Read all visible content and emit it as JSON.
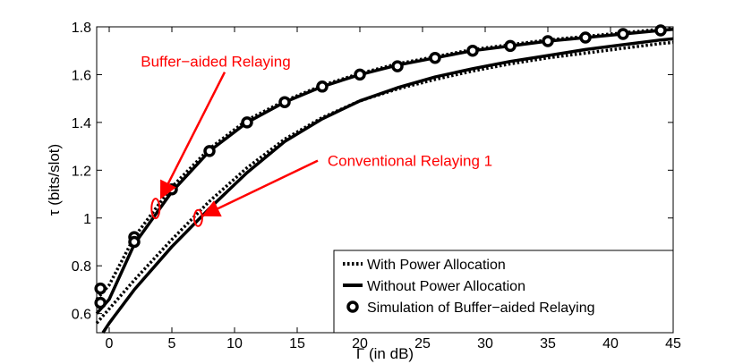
{
  "chart_data": {
    "type": "line",
    "title": "",
    "xlabel": "Γ (in dB)",
    "ylabel": "τ (bits/slot)",
    "xlim": [
      -1,
      45
    ],
    "ylim": [
      0.52,
      1.8
    ],
    "xticks": [
      0,
      5,
      10,
      15,
      20,
      25,
      30,
      35,
      40,
      45
    ],
    "yticks": [
      0.6,
      0.8,
      1.0,
      1.2,
      1.4,
      1.6,
      1.8
    ],
    "xtick_labels": [
      "0",
      "5",
      "10",
      "15",
      "20",
      "25",
      "30",
      "35",
      "40",
      "45"
    ],
    "ytick_labels": [
      "0.6",
      "0.8",
      "1",
      "1.2",
      "1.4",
      "1.6",
      "1.8"
    ],
    "grid": false,
    "legend_position": "bottom-right",
    "legend": [
      {
        "label": "With Power Allocation",
        "style": "dotted-line"
      },
      {
        "label": "Without Power Allocation",
        "style": "solid-line"
      },
      {
        "label": "Simulation of Buffer−aided Relaying",
        "style": "circle-marker"
      }
    ],
    "series": [
      {
        "name": "Buffer-aided Relaying, With Power Allocation",
        "style": "dotted",
        "x": [
          -1,
          0,
          2,
          5,
          8,
          11,
          14,
          17,
          20,
          23,
          26,
          29,
          32,
          35,
          38,
          41,
          44,
          45
        ],
        "y": [
          0.66,
          0.72,
          0.92,
          1.13,
          1.29,
          1.41,
          1.49,
          1.555,
          1.605,
          1.645,
          1.675,
          1.705,
          1.725,
          1.745,
          1.76,
          1.775,
          1.79,
          1.795
        ]
      },
      {
        "name": "Buffer-aided Relaying, Without Power Allocation",
        "style": "solid",
        "x": [
          -1,
          0,
          2,
          5,
          8,
          11,
          14,
          17,
          20,
          23,
          26,
          29,
          32,
          35,
          38,
          41,
          44,
          45
        ],
        "y": [
          0.6,
          0.66,
          0.89,
          1.11,
          1.28,
          1.4,
          1.485,
          1.55,
          1.6,
          1.64,
          1.67,
          1.7,
          1.72,
          1.74,
          1.755,
          1.77,
          1.785,
          1.79
        ]
      },
      {
        "name": "Conventional Relaying 1, With Power Allocation",
        "style": "dotted",
        "x": [
          -1,
          0,
          2,
          5,
          8,
          11,
          14,
          17,
          20,
          23,
          26,
          29,
          32,
          35,
          38,
          41,
          44,
          45
        ],
        "y": [
          0.56,
          0.62,
          0.74,
          0.91,
          1.07,
          1.21,
          1.33,
          1.42,
          1.49,
          1.54,
          1.58,
          1.615,
          1.645,
          1.67,
          1.69,
          1.71,
          1.73,
          1.735
        ]
      },
      {
        "name": "Conventional Relaying 1, Without Power Allocation",
        "style": "solid",
        "x": [
          -0.5,
          0,
          2,
          5,
          8,
          11,
          14,
          17,
          20,
          23,
          26,
          29,
          32,
          35,
          38,
          41,
          44,
          45
        ],
        "y": [
          0.52,
          0.56,
          0.7,
          0.88,
          1.04,
          1.19,
          1.32,
          1.415,
          1.49,
          1.545,
          1.59,
          1.625,
          1.655,
          1.68,
          1.705,
          1.725,
          1.745,
          1.75
        ]
      },
      {
        "name": "Simulation of Buffer-aided Relaying",
        "style": "circles",
        "x": [
          -0.7,
          -0.7,
          2,
          2,
          5,
          8,
          11,
          14,
          17,
          20,
          23,
          26,
          29,
          32,
          35,
          38,
          41,
          44
        ],
        "y": [
          0.705,
          0.645,
          0.92,
          0.9,
          1.12,
          1.28,
          1.4,
          1.485,
          1.55,
          1.6,
          1.635,
          1.67,
          1.7,
          1.72,
          1.74,
          1.755,
          1.77,
          1.785
        ]
      }
    ],
    "annotations": [
      {
        "text": "Buffer−aided Relaying",
        "ellipse_at": [
          3.7,
          1.04
        ],
        "label_at": [
          8.5,
          1.655
        ]
      },
      {
        "text": "Conventional Relaying 1",
        "ellipse_at": [
          7.1,
          1.0
        ],
        "label_at": [
          24,
          1.24
        ]
      }
    ],
    "colors": {
      "series": "#000000",
      "annotation": "#ff0000",
      "background": "#ffffff"
    }
  }
}
